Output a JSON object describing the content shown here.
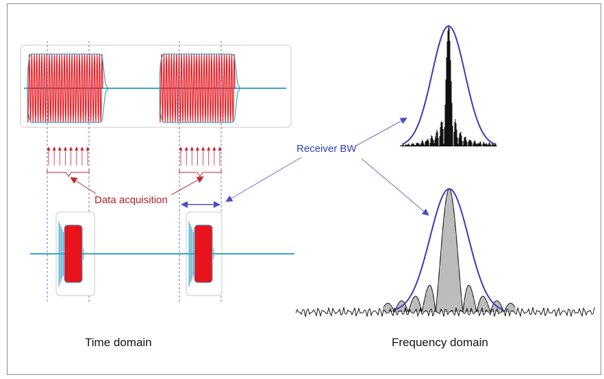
{
  "labels": {
    "receiver_bw": "Receiver BW",
    "data_acquisition": "Data acquisition",
    "time_domain": "Time domain",
    "frequency_domain": "Frequency domain"
  },
  "colors": {
    "signal_fill": "#e8141b",
    "baseline": "#3aa3c8",
    "envelope": "#3b36b8",
    "annotation_red": "#b01f24",
    "annotation_blue": "#2f3fae",
    "spectrum": "#111111",
    "dashed_guides": "#6b6bc9"
  }
}
